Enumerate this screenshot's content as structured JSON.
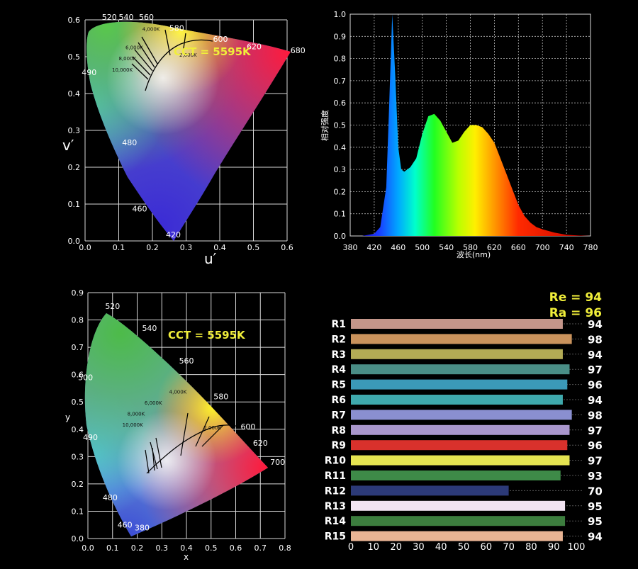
{
  "chart_data": [
    {
      "type": "scatter",
      "chart": "cie1976-uv",
      "xlabel": "u′",
      "ylabel": "v′",
      "xticks": [
        "0.0",
        "0.1",
        "0.2",
        "0.3",
        "0.4",
        "0.5",
        "0.6"
      ],
      "yticks": [
        "0.0",
        "0.1",
        "0.2",
        "0.3",
        "0.4",
        "0.5",
        "0.6"
      ],
      "xlim": [
        0,
        0.6
      ],
      "ylim": [
        0,
        0.6
      ],
      "grid": true,
      "annotation": "CCT = 5595K",
      "wavelength_labels": [
        {
          "text": "520",
          "u": 0.05,
          "v": 0.6
        },
        {
          "text": "540",
          "u": 0.1,
          "v": 0.6
        },
        {
          "text": "560",
          "u": 0.16,
          "v": 0.6
        },
        {
          "text": "580",
          "u": 0.25,
          "v": 0.57
        },
        {
          "text": "600",
          "u": 0.38,
          "v": 0.54
        },
        {
          "text": "620",
          "u": 0.48,
          "v": 0.52
        },
        {
          "text": "680",
          "u": 0.61,
          "v": 0.51
        },
        {
          "text": "490",
          "u": -0.01,
          "v": 0.45
        },
        {
          "text": "480",
          "u": 0.11,
          "v": 0.26
        },
        {
          "text": "460",
          "u": 0.14,
          "v": 0.08
        },
        {
          "text": "420",
          "u": 0.24,
          "v": 0.01
        }
      ],
      "cct_labels": [
        {
          "text": "4,000K",
          "u": 0.17,
          "v": 0.57
        },
        {
          "text": "6,000K",
          "u": 0.12,
          "v": 0.52
        },
        {
          "text": "8,000K",
          "u": 0.1,
          "v": 0.49
        },
        {
          "text": "10,000K",
          "u": 0.08,
          "v": 0.46
        },
        {
          "text": "2,000K",
          "u": 0.28,
          "v": 0.5
        }
      ]
    },
    {
      "type": "area",
      "chart": "spectrum",
      "xlabel": "波长(nm)",
      "ylabel": "相对强度",
      "xticks": [
        380,
        420,
        460,
        500,
        540,
        580,
        620,
        660,
        700,
        740,
        780
      ],
      "yticks": [
        "0.0",
        "0.1",
        "0.2",
        "0.3",
        "0.4",
        "0.5",
        "0.6",
        "0.7",
        "0.8",
        "0.9",
        "1.0"
      ],
      "xlim": [
        380,
        780
      ],
      "ylim": [
        0,
        1
      ],
      "grid": true,
      "x": [
        380,
        400,
        420,
        430,
        440,
        445,
        450,
        455,
        460,
        465,
        470,
        480,
        490,
        500,
        510,
        520,
        530,
        540,
        550,
        560,
        570,
        580,
        590,
        600,
        610,
        620,
        630,
        640,
        650,
        660,
        670,
        680,
        690,
        700,
        720,
        740,
        760,
        780
      ],
      "y": [
        0.0,
        0.0,
        0.01,
        0.04,
        0.22,
        0.6,
        1.0,
        0.72,
        0.4,
        0.3,
        0.29,
        0.31,
        0.35,
        0.46,
        0.54,
        0.55,
        0.52,
        0.47,
        0.42,
        0.43,
        0.47,
        0.5,
        0.5,
        0.49,
        0.46,
        0.42,
        0.35,
        0.28,
        0.21,
        0.14,
        0.09,
        0.06,
        0.04,
        0.03,
        0.015,
        0.005,
        0.002,
        0.0
      ]
    },
    {
      "type": "scatter",
      "chart": "cie1931-xy",
      "xlabel": "x",
      "ylabel": "y",
      "xticks": [
        "0.0",
        "0.1",
        "0.2",
        "0.3",
        "0.4",
        "0.5",
        "0.6",
        "0.7",
        "0.8"
      ],
      "yticks": [
        "0.0",
        "0.1",
        "0.2",
        "0.3",
        "0.4",
        "0.5",
        "0.6",
        "0.7",
        "0.8",
        "0.9"
      ],
      "xlim": [
        0,
        0.8
      ],
      "ylim": [
        0,
        0.9
      ],
      "grid": true,
      "annotation": "CCT = 5595K",
      "wavelength_labels": [
        {
          "text": "520",
          "x": 0.07,
          "y": 0.84
        },
        {
          "text": "540",
          "x": 0.22,
          "y": 0.76
        },
        {
          "text": "560",
          "x": 0.37,
          "y": 0.64
        },
        {
          "text": "580",
          "x": 0.51,
          "y": 0.51
        },
        {
          "text": "600",
          "x": 0.62,
          "y": 0.4
        },
        {
          "text": "620",
          "x": 0.67,
          "y": 0.34
        },
        {
          "text": "700",
          "x": 0.74,
          "y": 0.27
        },
        {
          "text": "500",
          "x": -0.04,
          "y": 0.58
        },
        {
          "text": "490",
          "x": -0.02,
          "y": 0.36
        },
        {
          "text": "480",
          "x": 0.06,
          "y": 0.14
        },
        {
          "text": "460",
          "x": 0.12,
          "y": 0.04
        },
        {
          "text": "380",
          "x": 0.19,
          "y": 0.03
        }
      ],
      "cct_labels": [
        {
          "text": "4,000K",
          "x": 0.33,
          "y": 0.53
        },
        {
          "text": "6,000K",
          "x": 0.23,
          "y": 0.49
        },
        {
          "text": "8,000K",
          "x": 0.16,
          "y": 0.45
        },
        {
          "text": "10,000K",
          "x": 0.14,
          "y": 0.41
        },
        {
          "text": "2,000K",
          "x": 0.47,
          "y": 0.4
        }
      ]
    },
    {
      "type": "bar",
      "chart": "cri",
      "orientation": "horizontal",
      "headline": [
        "Re = 94",
        "Ra = 96"
      ],
      "categories": [
        "R1",
        "R2",
        "R3",
        "R4",
        "R5",
        "R6",
        "R7",
        "R8",
        "R9",
        "R10",
        "R11",
        "R12",
        "R13",
        "R14",
        "R15"
      ],
      "values": [
        94,
        98,
        94,
        97,
        96,
        94,
        98,
        97,
        96,
        97,
        93,
        70,
        95,
        95,
        94
      ],
      "colors": [
        "#c4968a",
        "#c9925c",
        "#b3ab55",
        "#4a8e86",
        "#3b99b8",
        "#3fa9ad",
        "#8a8fd0",
        "#a996cc",
        "#d9312c",
        "#e5e451",
        "#3e8a48",
        "#2c3a78",
        "#f2e4f2",
        "#3c7d3e",
        "#e9b494"
      ],
      "xticks": [
        0,
        10,
        20,
        30,
        40,
        50,
        60,
        70,
        80,
        90,
        100
      ],
      "xlim": [
        0,
        100
      ]
    }
  ]
}
